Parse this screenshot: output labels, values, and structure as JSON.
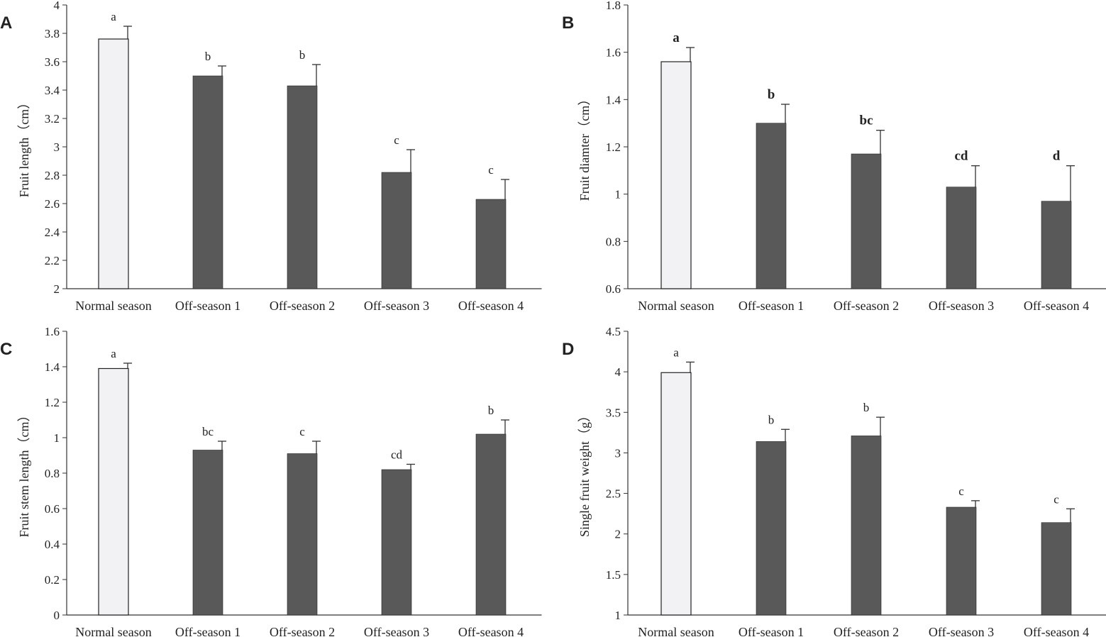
{
  "colors": {
    "normal_fill": "#f2f2f4",
    "offseason_fill": "#595959",
    "bar_stroke": "#222222",
    "axis": "#333333"
  },
  "chart_data": [
    {
      "panel": "A",
      "type": "bar",
      "ylabel": "Fruit length（cm）",
      "ylim": [
        2,
        4
      ],
      "yticks": [
        "2",
        "2.2",
        "2.4",
        "2.6",
        "2.8",
        "3",
        "3.2",
        "3.4",
        "3.6",
        "3.8",
        "4"
      ],
      "categories": [
        "Normal season",
        "Off-season 1",
        "Off-season 2",
        "Off-season 3",
        "Off-season 4"
      ],
      "values": [
        3.76,
        3.5,
        3.43,
        2.82,
        2.63
      ],
      "errors": [
        0.09,
        0.07,
        0.15,
        0.16,
        0.14
      ],
      "significance": [
        "a",
        "b",
        "b",
        "c",
        "c"
      ],
      "sig_bold": false
    },
    {
      "panel": "B",
      "type": "bar",
      "ylabel": "Fruit diamter（cm）",
      "ylim": [
        0.6,
        1.8
      ],
      "yticks": [
        "0.6",
        "0.8",
        "1",
        "1.2",
        "1.4",
        "1.6",
        "1.8"
      ],
      "categories": [
        "Normal season",
        "Off-season 1",
        "Off-season 2",
        "Off-season 3",
        "Off-season 4"
      ],
      "values": [
        1.56,
        1.3,
        1.17,
        1.03,
        0.97
      ],
      "errors": [
        0.06,
        0.08,
        0.1,
        0.09,
        0.15
      ],
      "significance": [
        "a",
        "b",
        "bc",
        "cd",
        "d"
      ],
      "sig_bold": true
    },
    {
      "panel": "C",
      "type": "bar",
      "ylabel": "Fruit stem length（cm）",
      "ylim": [
        0,
        1.6
      ],
      "yticks": [
        "0",
        "0.2",
        "0.4",
        "0.6",
        "0.8",
        "1",
        "1.2",
        "1.4",
        "1.6"
      ],
      "categories": [
        "Normal season",
        "Off-season 1",
        "Off-season 2",
        "Off-season 3",
        "Off-season 4"
      ],
      "values": [
        1.39,
        0.93,
        0.91,
        0.82,
        1.02
      ],
      "errors": [
        0.03,
        0.05,
        0.07,
        0.03,
        0.08
      ],
      "significance": [
        "a",
        "bc",
        "c",
        "cd",
        "b"
      ],
      "sig_bold": false
    },
    {
      "panel": "D",
      "type": "bar",
      "ylabel": "Single fruit weight（g）",
      "ylim": [
        1,
        4.5
      ],
      "yticks": [
        "1",
        "1.5",
        "2",
        "2.5",
        "3",
        "3.5",
        "4",
        "4.5"
      ],
      "categories": [
        "Normal season",
        "Off-season 1",
        "Off-season 2",
        "Off-season 3",
        "Off-season 4"
      ],
      "values": [
        3.99,
        3.14,
        3.21,
        2.33,
        2.14
      ],
      "errors": [
        0.13,
        0.15,
        0.23,
        0.08,
        0.17
      ],
      "significance": [
        "a",
        "b",
        "b",
        "c",
        "c"
      ],
      "sig_bold": false
    }
  ]
}
